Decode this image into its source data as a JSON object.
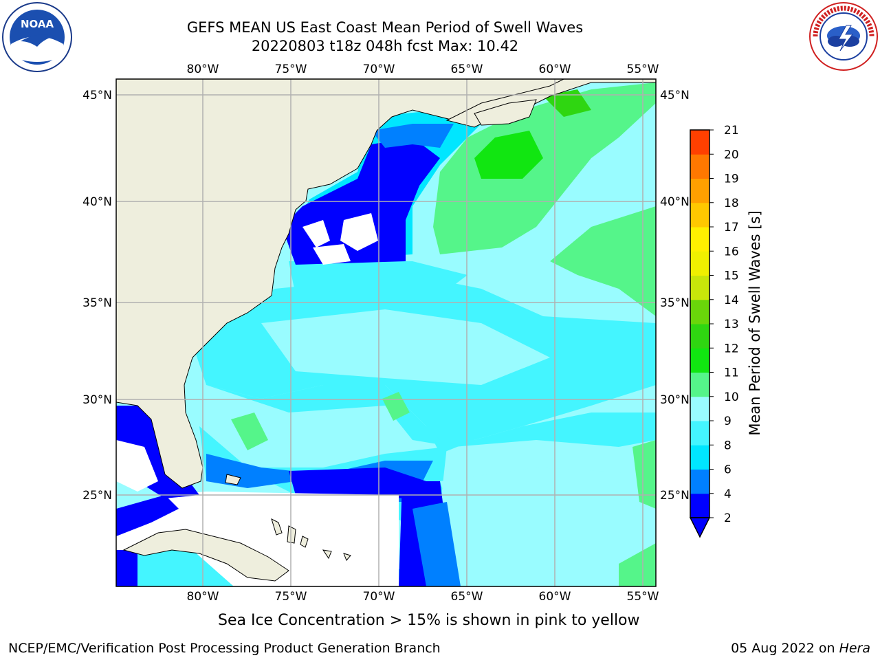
{
  "header": {
    "title_line1": "GEFS MEAN US East Coast Mean Period of Swell Waves",
    "title_line2": "20220803 t18z 048h fcst   Max: 10.42"
  },
  "logos": {
    "left": {
      "icon": "noaa-logo",
      "text": "NOAA"
    },
    "right": {
      "icon": "nws-logo"
    }
  },
  "map": {
    "longitude_labels": [
      "80°W",
      "75°W",
      "70°W",
      "65°W",
      "60°W",
      "55°W"
    ],
    "latitude_labels": [
      "45°N",
      "40°N",
      "35°N",
      "30°N",
      "25°N"
    ],
    "land_color": "#eeeedd",
    "grid_color": "#b0b0b0"
  },
  "colorbar": {
    "label": "Mean Period of Swell Waves [s]",
    "ticks": [
      "2",
      "4",
      "6",
      "8",
      "9",
      "10",
      "11",
      "12",
      "13",
      "14",
      "15",
      "16",
      "17",
      "18",
      "19",
      "20",
      "21"
    ],
    "colors": [
      "#0000ff",
      "#0080ff",
      "#00e6ff",
      "#44f5ff",
      "#99fcff",
      "#55f58a",
      "#11e611",
      "#2fd611",
      "#6ad60a",
      "#c8e60a",
      "#f0f000",
      "#fff000",
      "#ffc800",
      "#ffa000",
      "#ff7800",
      "#ff4000",
      "#ff0000"
    ]
  },
  "footer": {
    "sea_ice_note": "Sea Ice Concentration > 15% is shown in pink to yellow",
    "credit": "NCEP/EMC/Verification Post Processing Product Generation Branch",
    "date": "05 Aug 2022 on",
    "host": "Hera"
  }
}
